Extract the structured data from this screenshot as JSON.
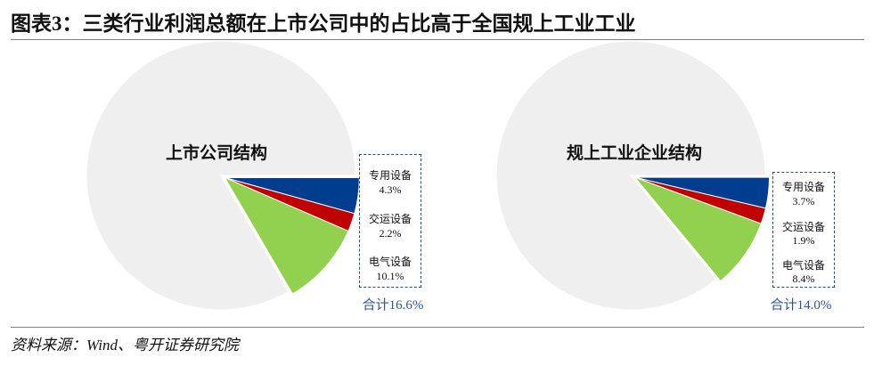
{
  "title": "图表3：三类行业利润总额在上市公司中的占比高于全国规上工业工业",
  "source": "资料来源：Wind、粤开证券研究院",
  "colors": {
    "rest_slice": "#EFEFEF",
    "total_text": "#2F5597",
    "box_border": "#2F4A7A"
  },
  "chart_data": [
    {
      "type": "pie",
      "title": "上市公司结构",
      "slices": [
        {
          "label": "专用设备",
          "value": 4.3,
          "value_label": "4.3%",
          "color": "#003D8F"
        },
        {
          "label": "交运设备",
          "value": 2.2,
          "value_label": "2.2%",
          "color": "#C00000"
        },
        {
          "label": "电气设备",
          "value": 10.1,
          "value_label": "10.1%",
          "color": "#92D050"
        }
      ],
      "total_label": "合计16.6%"
    },
    {
      "type": "pie",
      "title": "规上工业企业结构",
      "slices": [
        {
          "label": "专用设备",
          "value": 3.7,
          "value_label": "3.7%",
          "color": "#003D8F"
        },
        {
          "label": "交运设备",
          "value": 1.9,
          "value_label": "1.9%",
          "color": "#C00000"
        },
        {
          "label": "电气设备",
          "value": 8.4,
          "value_label": "8.4%",
          "color": "#92D050"
        }
      ],
      "total_label": "合计14.0%"
    }
  ]
}
